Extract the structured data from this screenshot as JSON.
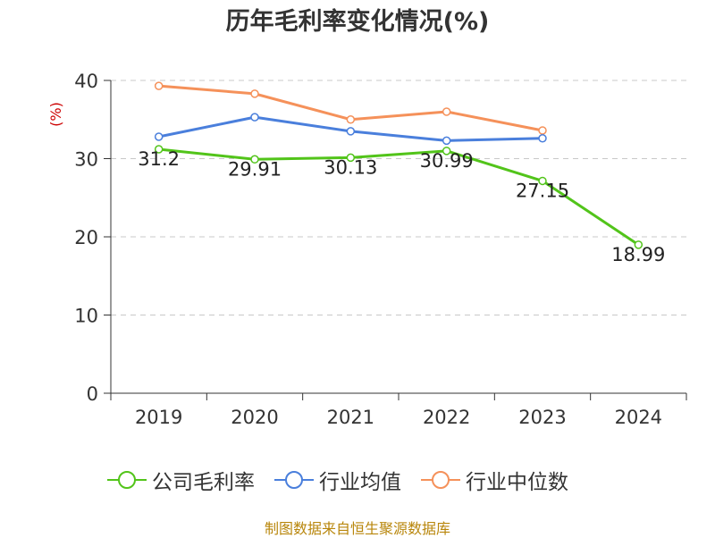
{
  "chart_data": {
    "type": "line",
    "title": "历年毛利率变化情况(%)",
    "ylabel": "(%)",
    "xlabel": "",
    "categories": [
      "2019",
      "2020",
      "2021",
      "2022",
      "2023",
      "2024"
    ],
    "ylim": [
      0,
      40
    ],
    "yticks": [
      0,
      10,
      20,
      30,
      40
    ],
    "grid": true,
    "legend_position": "bottom",
    "series": [
      {
        "name": "公司毛利率",
        "color": "#52c41a",
        "values": [
          31.2,
          29.91,
          30.13,
          30.99,
          27.15,
          18.99
        ],
        "labels": [
          "31.2",
          "29.91",
          "30.13",
          "30.99",
          "27.15",
          "18.99"
        ]
      },
      {
        "name": "行业均值",
        "color": "#4a7fdc",
        "values": [
          32.8,
          35.3,
          33.5,
          32.3,
          32.6,
          null
        ]
      },
      {
        "name": "行业中位数",
        "color": "#f5915a",
        "values": [
          39.3,
          38.3,
          35.0,
          36.0,
          33.6,
          null
        ]
      }
    ]
  },
  "source_note": "制图数据来自恒生聚源数据库"
}
